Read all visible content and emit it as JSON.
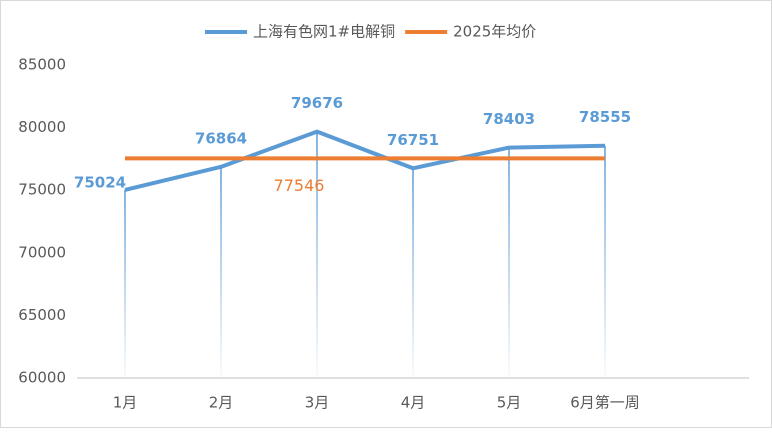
{
  "chart_data": {
    "type": "line",
    "categories": [
      "1月",
      "2月",
      "3月",
      "4月",
      "5月",
      "6月第一周",
      null
    ],
    "series": [
      {
        "name": "上海有色网1#电解铜",
        "color": "#5b9bd5",
        "values": [
          75024,
          76864,
          79676,
          76751,
          78403,
          78555,
          null
        ]
      },
      {
        "name": "2025年均价",
        "color": "#ed7d31",
        "values": [
          77546,
          77546,
          77546,
          77546,
          77546,
          77546,
          null
        ]
      }
    ],
    "ylim": [
      60000,
      85000
    ],
    "yticks": [
      60000,
      65000,
      70000,
      75000,
      80000,
      85000
    ],
    "grid": false,
    "legend": "top"
  }
}
